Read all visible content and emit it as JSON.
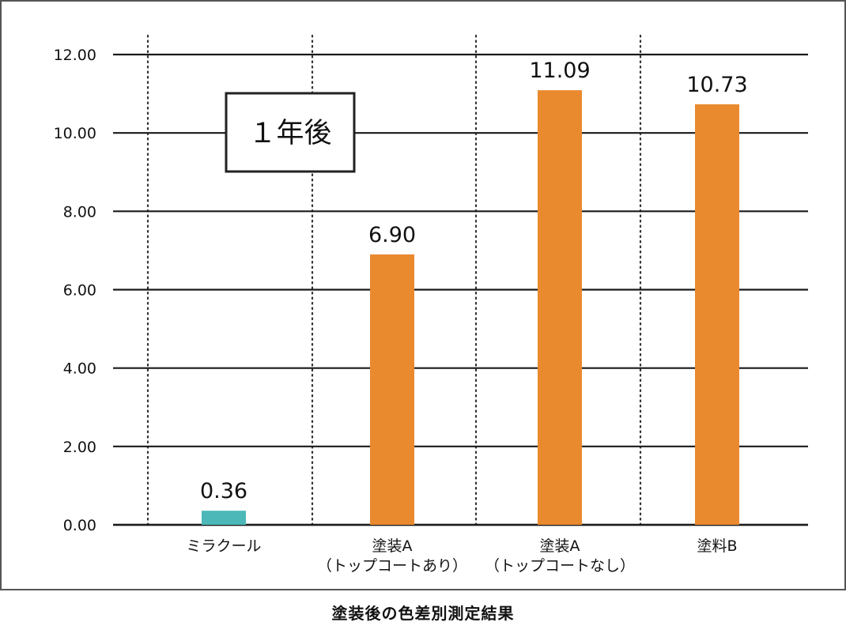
{
  "caption": "塗装後の色差別測定結果",
  "chart_data": {
    "type": "bar",
    "title": "",
    "annotation": "１年後",
    "xlabel": "",
    "ylabel": "",
    "ylim": [
      0,
      12
    ],
    "yticks": [
      "0.00",
      "2.00",
      "4.00",
      "6.00",
      "8.00",
      "10.00",
      "12.00"
    ],
    "grid": true,
    "categories": [
      [
        "ミラクール"
      ],
      [
        "塗装A",
        "（トップコートあり）"
      ],
      [
        "塗装A",
        "（トップコートなし）"
      ],
      [
        "塗料B"
      ]
    ],
    "values": [
      0.36,
      6.9,
      11.09,
      10.73
    ],
    "data_labels": [
      "0.36",
      "6.90",
      "11.09",
      "10.73"
    ],
    "colors": [
      "#4cb8b8",
      "#e98a2f",
      "#e98a2f",
      "#e98a2f"
    ]
  }
}
